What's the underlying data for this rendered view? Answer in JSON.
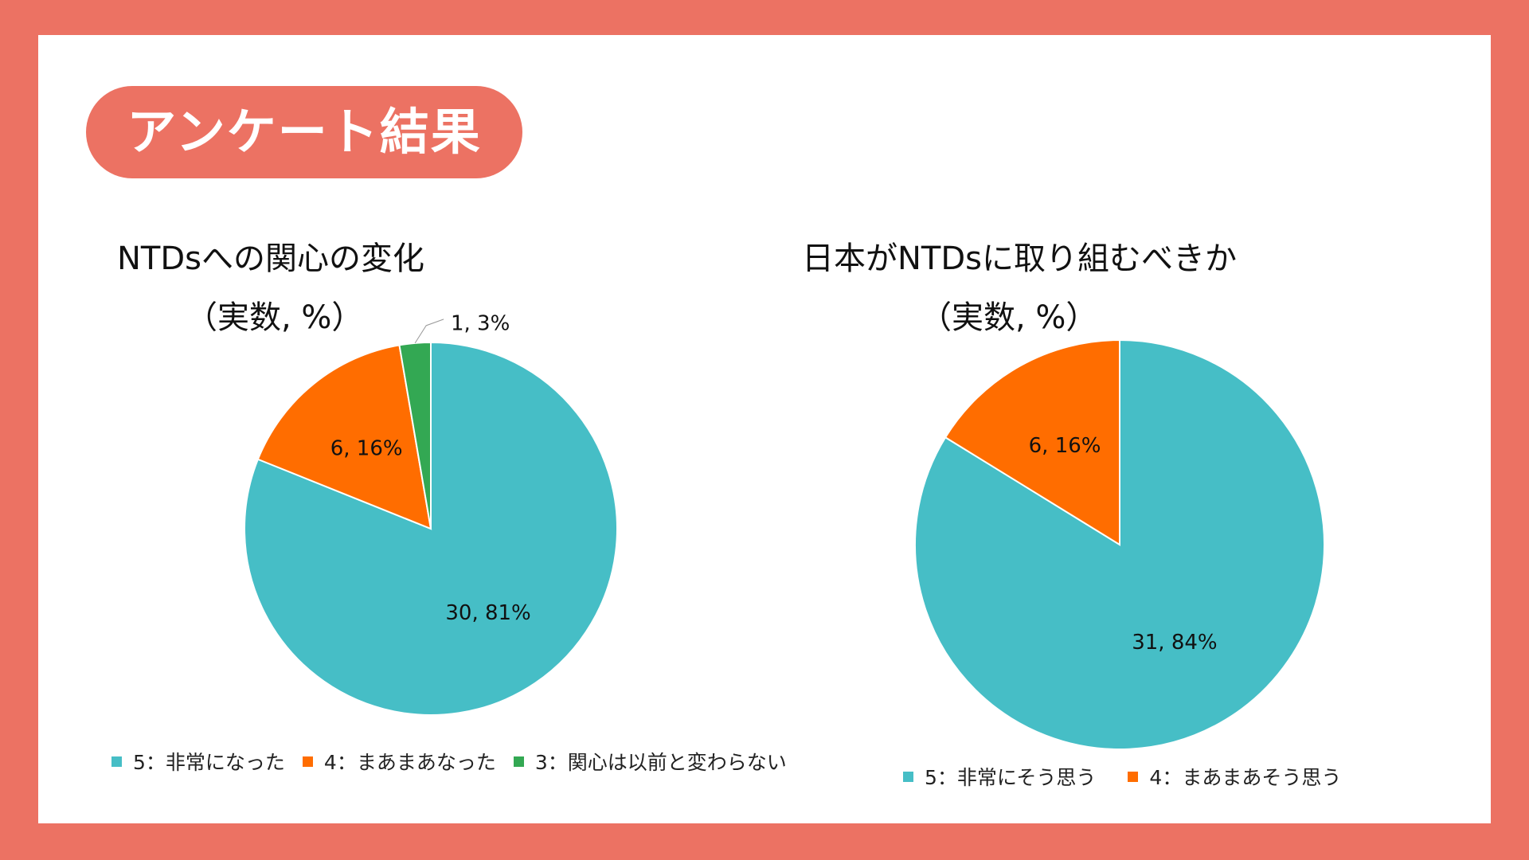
{
  "header": {
    "title": "アンケート結果"
  },
  "colors": {
    "teal": "#46bec6",
    "orange": "#ff6d00",
    "green": "#33a853",
    "frame": "#ec7263"
  },
  "chart_data": [
    {
      "type": "pie",
      "title": "NTDsへの関心の変化",
      "subtitle": "（実数, %）",
      "categories": [
        "5：非常になった",
        "4：まあまあなった",
        "3：関心は以前と変わらない"
      ],
      "values": [
        30,
        6,
        1
      ],
      "percents": [
        81,
        16,
        3
      ],
      "data_labels": [
        "30, 81%",
        "6, 16%",
        "1, 3%"
      ],
      "colors": [
        "#46bec6",
        "#ff6d00",
        "#33a853"
      ],
      "legend_position": "bottom",
      "legend": [
        "5：非常になった",
        "4：まあまあなった",
        "3：関心は以前と変わらない"
      ]
    },
    {
      "type": "pie",
      "title": "日本がNTDsに取り組むべきか",
      "subtitle": "（実数, %）",
      "categories": [
        "5：非常にそう思う",
        "4：まあまあそう思う"
      ],
      "values": [
        31,
        6
      ],
      "percents": [
        84,
        16
      ],
      "data_labels": [
        "31, 84%",
        "6, 16%"
      ],
      "colors": [
        "#46bec6",
        "#ff6d00"
      ],
      "legend_position": "bottom",
      "legend": [
        "5：非常にそう思う",
        "4：まあまあそう思う"
      ]
    }
  ]
}
